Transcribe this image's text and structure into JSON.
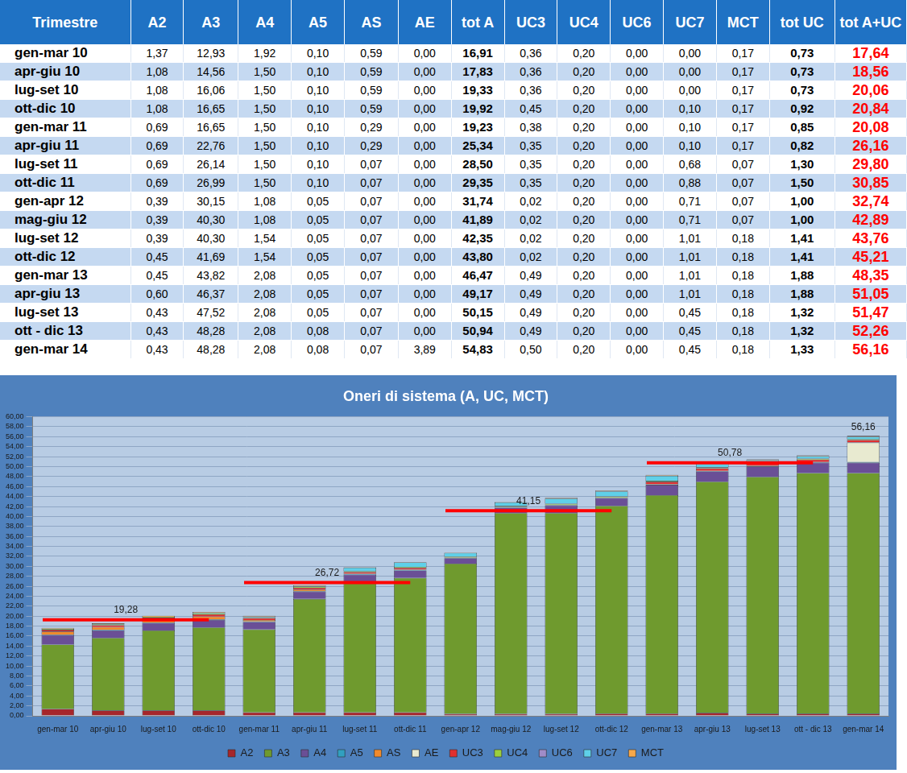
{
  "table": {
    "header": [
      "Trimestre",
      "A2",
      "A3",
      "A4",
      "A5",
      "AS",
      "AE",
      "tot A",
      "UC3",
      "UC4",
      "UC6",
      "UC7",
      "MCT",
      "tot UC",
      "tot A+UC"
    ],
    "rows": [
      [
        "gen-mar 10",
        "1,37",
        "12,93",
        "1,92",
        "0,10",
        "0,59",
        "0,00",
        "16,91",
        "0,36",
        "0,20",
        "0,00",
        "0,00",
        "0,17",
        "0,73",
        "17,64"
      ],
      [
        "apr-giu 10",
        "1,08",
        "14,56",
        "1,50",
        "0,10",
        "0,59",
        "0,00",
        "17,83",
        "0,36",
        "0,20",
        "0,00",
        "0,00",
        "0,17",
        "0,73",
        "18,56"
      ],
      [
        "lug-set 10",
        "1,08",
        "16,06",
        "1,50",
        "0,10",
        "0,59",
        "0,00",
        "19,33",
        "0,36",
        "0,20",
        "0,00",
        "0,00",
        "0,17",
        "0,73",
        "20,06"
      ],
      [
        "ott-dic 10",
        "1,08",
        "16,65",
        "1,50",
        "0,10",
        "0,59",
        "0,00",
        "19,92",
        "0,45",
        "0,20",
        "0,00",
        "0,10",
        "0,17",
        "0,92",
        "20,84"
      ],
      [
        "gen-mar 11",
        "0,69",
        "16,65",
        "1,50",
        "0,10",
        "0,29",
        "0,00",
        "19,23",
        "0,38",
        "0,20",
        "0,00",
        "0,10",
        "0,17",
        "0,85",
        "20,08"
      ],
      [
        "apr-giu 11",
        "0,69",
        "22,76",
        "1,50",
        "0,10",
        "0,29",
        "0,00",
        "25,34",
        "0,35",
        "0,20",
        "0,00",
        "0,10",
        "0,17",
        "0,82",
        "26,16"
      ],
      [
        "lug-set 11",
        "0,69",
        "26,14",
        "1,50",
        "0,10",
        "0,07",
        "0,00",
        "28,50",
        "0,35",
        "0,20",
        "0,00",
        "0,68",
        "0,07",
        "1,30",
        "29,80"
      ],
      [
        "ott-dic 11",
        "0,69",
        "26,99",
        "1,50",
        "0,10",
        "0,07",
        "0,00",
        "29,35",
        "0,35",
        "0,20",
        "0,00",
        "0,88",
        "0,07",
        "1,50",
        "30,85"
      ],
      [
        "gen-apr 12",
        "0,39",
        "30,15",
        "1,08",
        "0,05",
        "0,07",
        "0,00",
        "31,74",
        "0,02",
        "0,20",
        "0,00",
        "0,71",
        "0,07",
        "1,00",
        "32,74"
      ],
      [
        "mag-giu 12",
        "0,39",
        "40,30",
        "1,08",
        "0,05",
        "0,07",
        "0,00",
        "41,89",
        "0,02",
        "0,20",
        "0,00",
        "0,71",
        "0,07",
        "1,00",
        "42,89"
      ],
      [
        "lug-set 12",
        "0,39",
        "40,30",
        "1,54",
        "0,05",
        "0,07",
        "0,00",
        "42,35",
        "0,02",
        "0,20",
        "0,00",
        "1,01",
        "0,18",
        "1,41",
        "43,76"
      ],
      [
        "ott-dic 12",
        "0,45",
        "41,69",
        "1,54",
        "0,05",
        "0,07",
        "0,00",
        "43,80",
        "0,02",
        "0,20",
        "0,00",
        "1,01",
        "0,18",
        "1,41",
        "45,21"
      ],
      [
        "gen-mar 13",
        "0,45",
        "43,82",
        "2,08",
        "0,05",
        "0,07",
        "0,00",
        "46,47",
        "0,49",
        "0,20",
        "0,00",
        "1,01",
        "0,18",
        "1,88",
        "48,35"
      ],
      [
        "apr-giu 13",
        "0,60",
        "46,37",
        "2,08",
        "0,05",
        "0,07",
        "0,00",
        "49,17",
        "0,49",
        "0,20",
        "0,00",
        "1,01",
        "0,18",
        "1,88",
        "51,05"
      ],
      [
        "lug-set 13",
        "0,43",
        "47,52",
        "2,08",
        "0,05",
        "0,07",
        "0,00",
        "50,15",
        "0,49",
        "0,20",
        "0,00",
        "0,45",
        "0,18",
        "1,32",
        "51,47"
      ],
      [
        "ott - dic 13",
        "0,43",
        "48,28",
        "2,08",
        "0,08",
        "0,07",
        "0,00",
        "50,94",
        "0,49",
        "0,20",
        "0,00",
        "0,45",
        "0,18",
        "1,32",
        "52,26"
      ],
      [
        "gen-mar 14",
        "0,43",
        "48,28",
        "2,08",
        "0,08",
        "0,07",
        "3,89",
        "54,83",
        "0,50",
        "0,20",
        "0,00",
        "0,45",
        "0,18",
        "1,33",
        "56,16"
      ]
    ]
  },
  "chart_data": {
    "type": "bar",
    "title": "Oneri di sistema (A, UC, MCT)",
    "stacked": true,
    "grid": true,
    "legend": "bottom",
    "categories": [
      "gen-mar 10",
      "apr-giu 10",
      "lug-set 10",
      "ott-dic 10",
      "gen-mar 11",
      "apr-giu 11",
      "lug-set 11",
      "ott-dic 11",
      "gen-apr 12",
      "mag-giu 12",
      "lug-set 12",
      "ott-dic 12",
      "gen-mar 13",
      "apr-giu 13",
      "lug-set 13",
      "ott - dic 13",
      "gen-mar 14"
    ],
    "series": [
      {
        "name": "A2",
        "color": "#a6262a",
        "values": [
          1.37,
          1.08,
          1.08,
          1.08,
          0.69,
          0.69,
          0.69,
          0.69,
          0.39,
          0.39,
          0.39,
          0.45,
          0.45,
          0.6,
          0.43,
          0.43,
          0.43
        ]
      },
      {
        "name": "A3",
        "color": "#6f9a2e",
        "values": [
          12.93,
          14.56,
          16.06,
          16.65,
          16.65,
          22.76,
          26.14,
          26.99,
          30.15,
          40.3,
          40.3,
          41.69,
          43.82,
          46.37,
          47.52,
          48.28,
          48.28
        ]
      },
      {
        "name": "A4",
        "color": "#6a4f96",
        "values": [
          1.92,
          1.5,
          1.5,
          1.5,
          1.5,
          1.5,
          1.5,
          1.5,
          1.08,
          1.08,
          1.54,
          1.54,
          2.08,
          2.08,
          2.08,
          2.08,
          2.08
        ]
      },
      {
        "name": "A5",
        "color": "#31a0c0",
        "values": [
          0.1,
          0.1,
          0.1,
          0.1,
          0.1,
          0.1,
          0.1,
          0.1,
          0.05,
          0.05,
          0.05,
          0.05,
          0.05,
          0.05,
          0.05,
          0.08,
          0.08
        ]
      },
      {
        "name": "AS",
        "color": "#f08a2c",
        "values": [
          0.59,
          0.59,
          0.59,
          0.59,
          0.29,
          0.29,
          0.07,
          0.07,
          0.07,
          0.07,
          0.07,
          0.07,
          0.07,
          0.07,
          0.07,
          0.07,
          0.07
        ]
      },
      {
        "name": "AE",
        "color": "#e8ead0",
        "values": [
          0.0,
          0.0,
          0.0,
          0.0,
          0.0,
          0.0,
          0.0,
          0.0,
          0.0,
          0.0,
          0.0,
          0.0,
          0.0,
          0.0,
          0.0,
          0.0,
          3.89
        ]
      },
      {
        "name": "UC3",
        "color": "#e03030",
        "values": [
          0.36,
          0.36,
          0.36,
          0.45,
          0.38,
          0.35,
          0.35,
          0.35,
          0.02,
          0.02,
          0.02,
          0.02,
          0.49,
          0.49,
          0.49,
          0.49,
          0.5
        ]
      },
      {
        "name": "UC4",
        "color": "#9bcf3c",
        "values": [
          0.2,
          0.2,
          0.2,
          0.2,
          0.2,
          0.2,
          0.2,
          0.2,
          0.2,
          0.2,
          0.2,
          0.2,
          0.2,
          0.2,
          0.2,
          0.2,
          0.2
        ]
      },
      {
        "name": "UC6",
        "color": "#a08cc8",
        "values": [
          0.0,
          0.0,
          0.0,
          0.0,
          0.0,
          0.0,
          0.0,
          0.0,
          0.0,
          0.0,
          0.0,
          0.0,
          0.0,
          0.0,
          0.0,
          0.0,
          0.0
        ]
      },
      {
        "name": "UC7",
        "color": "#5fd0e8",
        "values": [
          0.0,
          0.0,
          0.0,
          0.1,
          0.1,
          0.1,
          0.68,
          0.88,
          0.71,
          0.71,
          1.01,
          1.01,
          1.01,
          1.01,
          0.45,
          0.45,
          0.45
        ]
      },
      {
        "name": "MCT",
        "color": "#f7a84a",
        "values": [
          0.17,
          0.17,
          0.17,
          0.17,
          0.17,
          0.17,
          0.07,
          0.07,
          0.07,
          0.07,
          0.18,
          0.18,
          0.18,
          0.18,
          0.18,
          0.18,
          0.18
        ]
      }
    ],
    "ylim": [
      0,
      60
    ],
    "yticks": [
      {
        "value": 0,
        "label": "0,00"
      },
      {
        "value": 2,
        "label": "2,00"
      },
      {
        "value": 4,
        "label": "4,00"
      },
      {
        "value": 6,
        "label": "6,00"
      },
      {
        "value": 8,
        "label": "8,00"
      },
      {
        "value": 10,
        "label": "10,00"
      },
      {
        "value": 12,
        "label": "12,00"
      },
      {
        "value": 14,
        "label": "14,00"
      },
      {
        "value": 16,
        "label": "16,00"
      },
      {
        "value": 18,
        "label": "18,00"
      },
      {
        "value": 20,
        "label": "20,00"
      },
      {
        "value": 22,
        "label": "22,00"
      },
      {
        "value": 24,
        "label": "24,00"
      },
      {
        "value": 26,
        "label": "26,00"
      },
      {
        "value": 28,
        "label": "28,00"
      },
      {
        "value": 30,
        "label": "30,00"
      },
      {
        "value": 32,
        "label": "32,00"
      },
      {
        "value": 34,
        "label": "34,00"
      },
      {
        "value": 36,
        "label": "36,00"
      },
      {
        "value": 38,
        "label": "38,00"
      },
      {
        "value": 40,
        "label": "40,00"
      },
      {
        "value": 42,
        "label": "42,00"
      },
      {
        "value": 44,
        "label": "44,00"
      },
      {
        "value": 46,
        "label": "46,00"
      },
      {
        "value": 48,
        "label": "48,00"
      },
      {
        "value": 50,
        "label": "50,00"
      },
      {
        "value": 52,
        "label": "52,00"
      },
      {
        "value": 54,
        "label": "54,00"
      },
      {
        "value": 56,
        "label": "56,00"
      },
      {
        "value": 58,
        "label": "58,00"
      },
      {
        "value": 60,
        "label": "60,00"
      }
    ],
    "annotations": [
      {
        "label": "19,28",
        "value": 19.28,
        "from": "gen-mar 10",
        "to": "ott-dic 10"
      },
      {
        "label": "26,72",
        "value": 26.72,
        "from": "gen-mar 11",
        "to": "ott-dic 11"
      },
      {
        "label": "41,15",
        "value": 41.15,
        "from": "gen-apr 12",
        "to": "ott-dic 12"
      },
      {
        "label": "50,78",
        "value": 50.78,
        "from": "gen-mar 13",
        "to": "ott - dic 13"
      },
      {
        "label": "56,16",
        "value": 56.16,
        "at": "gen-mar 14"
      }
    ]
  }
}
